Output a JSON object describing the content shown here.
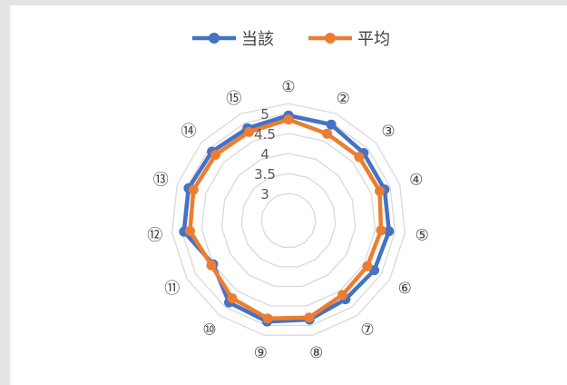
{
  "chart_data": {
    "type": "radar",
    "categories": [
      "①",
      "②",
      "③",
      "④",
      "⑤",
      "⑥",
      "⑦",
      "⑧",
      "⑨",
      "⑩",
      "⑪",
      "⑫",
      "⑬",
      "⑭",
      "⑮"
    ],
    "series": [
      {
        "name": "当該",
        "color": "#4472C4",
        "values": [
          4.95,
          4.95,
          4.85,
          4.85,
          4.85,
          4.8,
          4.75,
          4.85,
          4.9,
          4.85,
          4.5,
          4.95,
          4.95,
          4.9,
          4.85
        ]
      },
      {
        "name": "平均",
        "color": "#ED7D31",
        "values": [
          4.85,
          4.7,
          4.7,
          4.72,
          4.65,
          4.6,
          4.62,
          4.8,
          4.82,
          4.72,
          4.55,
          4.8,
          4.82,
          4.78,
          4.75
        ]
      }
    ],
    "rlim": [
      3,
      5
    ],
    "ticks": [
      "3",
      "3.5",
      "4",
      "4.5",
      "5"
    ],
    "legend_position": "top",
    "grid": true
  }
}
